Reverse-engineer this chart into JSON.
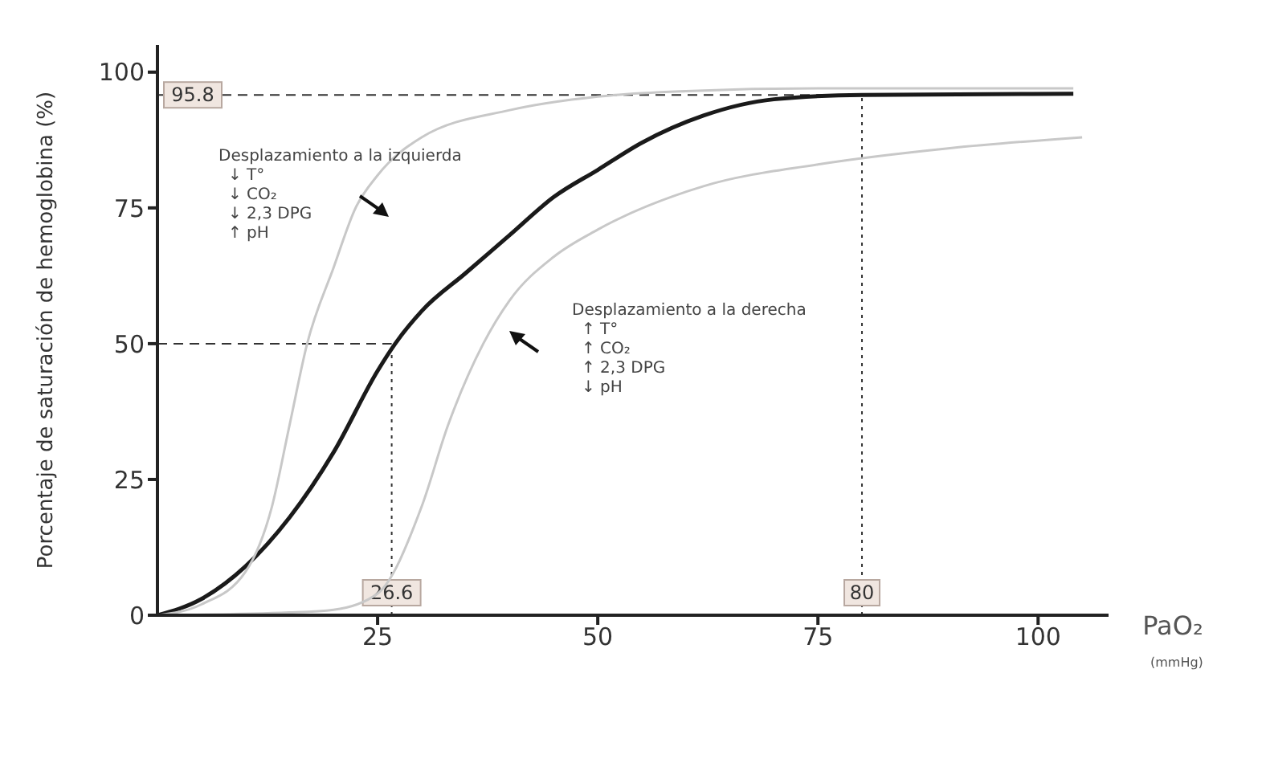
{
  "chart_data": {
    "type": "line",
    "xlabel": "PaO₂",
    "ylabel": "Porcentaje de saturación de hemoglobina (%)",
    "xlim": [
      0,
      108
    ],
    "xticks": [
      25,
      50,
      75,
      100
    ],
    "ylim": [
      0,
      105
    ],
    "yticks": [
      0,
      25,
      50,
      75,
      100
    ],
    "marker": "none",
    "line_style": "solid",
    "series": [
      {
        "color": "#1a1a1a",
        "x": [
          0,
          5,
          10,
          15,
          20,
          25,
          27,
          30,
          35,
          40,
          45,
          50,
          55,
          62,
          70,
          80,
          104
        ],
        "values": [
          0,
          3,
          9,
          18,
          30,
          45,
          50,
          56,
          63,
          70,
          77,
          82,
          87,
          92,
          95,
          95.8,
          96
        ]
      },
      {
        "color": "#c8c8c8",
        "x": [
          0,
          5,
          10,
          13,
          15,
          17,
          20,
          22.5,
          25,
          30,
          40,
          50,
          60,
          75,
          104
        ],
        "values": [
          0,
          2,
          8,
          20,
          35,
          50,
          64,
          75,
          81,
          88,
          93,
          95.5,
          96.5,
          97,
          97
        ]
      },
      {
        "color": "#c8c8c8",
        "x": [
          0,
          15,
          20,
          25,
          30,
          33,
          37,
          40,
          45,
          50,
          62,
          75,
          90,
          105
        ],
        "values": [
          0,
          0.5,
          1,
          4,
          20,
          35,
          50,
          58,
          66,
          71,
          79,
          83,
          86,
          88
        ]
      }
    ],
    "ref_lines": [
      {
        "axis": "y",
        "value": 95.8,
        "label": "95.8",
        "line_style": "dashed",
        "color": "#333333"
      },
      {
        "axis": "y",
        "value": 50,
        "line_style": "dashed",
        "color": "#333333"
      },
      {
        "axis": "x",
        "value": 26.6,
        "label": "26.6",
        "line_style": "dotted",
        "color": "#333333"
      },
      {
        "axis": "x",
        "value": 80,
        "label": "80",
        "line_style": "dotted",
        "color": "#333333"
      }
    ],
    "annotations": [
      "Desplazamiento a la izquierda\n↓ T°\n↓ CO₂\n↓ 2,3 DPG\n↑ pH",
      "Desplazamiento a la derecha\n↑ T°\n↑ CO₂\n↑ 2,3 DPG\n↓ pH",
      "(mmHg)"
    ]
  }
}
